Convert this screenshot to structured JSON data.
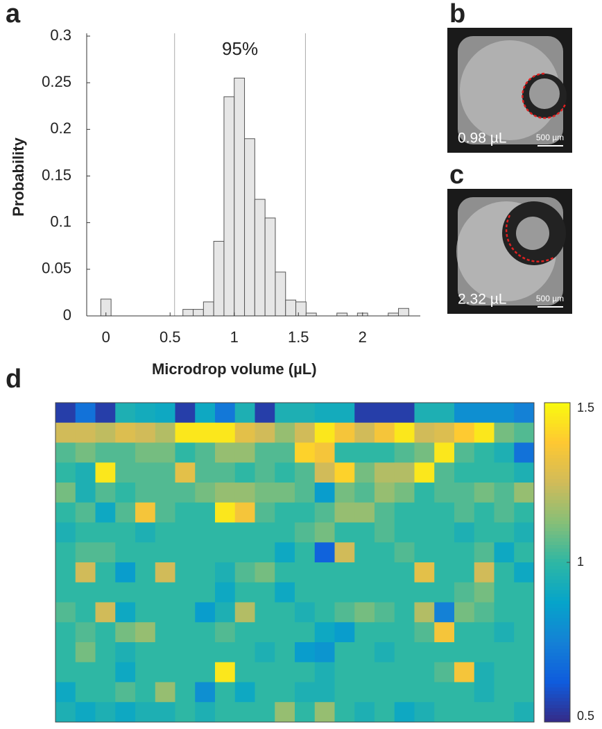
{
  "panel_labels": [
    "a",
    "b",
    "c",
    "d"
  ],
  "insets": [
    {
      "volume": "0.98 µL",
      "scale_bar": "500 µm"
    },
    {
      "volume": "2.32 µL",
      "scale_bar": "500 µm"
    }
  ],
  "chart_data": [
    {
      "type": "histogram",
      "xlabel": "Microdrop volume (µL)",
      "ylabel": "Probability",
      "bins": [
        -0.04,
        0.04,
        0.12,
        0.2,
        0.28,
        0.36,
        0.44,
        0.52,
        0.6,
        0.68,
        0.76,
        0.84,
        0.92,
        1.0,
        1.08,
        1.16,
        1.24,
        1.32,
        1.4,
        1.48,
        1.56,
        1.64,
        1.72,
        1.8,
        1.88,
        1.96,
        2.04,
        2.12,
        2.2,
        2.28,
        2.36
      ],
      "values": [
        0.018,
        0,
        0,
        0,
        0,
        0,
        0,
        0,
        0.007,
        0.007,
        0.015,
        0.08,
        0.235,
        0.255,
        0.19,
        0.125,
        0.105,
        0.047,
        0.017,
        0.015,
        0.003,
        0,
        0,
        0.003,
        0,
        0.003,
        0,
        0,
        0.003,
        0.008
      ],
      "color": "#e6e6e6",
      "edgecolor": "#555555",
      "xlim": [
        -0.15,
        2.45
      ],
      "xticks": [
        0,
        0.5,
        1,
        1.5,
        2
      ],
      "ylim": [
        0,
        0.3
      ],
      "yticks": [
        0,
        0.05,
        0.1,
        0.15,
        0.2,
        0.25,
        0.3
      ],
      "vlines": [
        0.535,
        1.555
      ],
      "annotation": "95%",
      "grid": false
    },
    {
      "type": "heatmap",
      "colormap": "parula",
      "clim": [
        0.5,
        1.5
      ],
      "colorbar_ticks": [
        0.5,
        1,
        1.5
      ],
      "values": [
        [
          0.55,
          0.7,
          0.55,
          0.95,
          0.92,
          0.9,
          0.55,
          0.9,
          0.72,
          0.95,
          0.55,
          0.95,
          0.95,
          0.92,
          0.92,
          0.55,
          0.55,
          0.55,
          0.95,
          0.95,
          0.8,
          0.8,
          0.8,
          0.75
        ],
        [
          1.25,
          1.25,
          1.22,
          1.28,
          1.25,
          1.2,
          1.45,
          1.45,
          1.45,
          1.3,
          1.25,
          1.15,
          1.25,
          1.45,
          1.35,
          1.25,
          1.35,
          1.45,
          1.25,
          1.28,
          1.38,
          1.45,
          1.1,
          1.05
        ],
        [
          1.05,
          1.1,
          1.05,
          1.05,
          1.1,
          1.1,
          1.0,
          1.05,
          1.15,
          1.15,
          1.05,
          1.05,
          1.4,
          1.35,
          1.0,
          1.0,
          1.0,
          1.05,
          1.1,
          1.45,
          1.05,
          1.0,
          0.95,
          0.7
        ],
        [
          1.0,
          0.95,
          1.45,
          1.05,
          1.05,
          1.05,
          1.3,
          1.05,
          1.05,
          1.0,
          1.05,
          1.0,
          1.05,
          1.25,
          1.4,
          1.1,
          1.2,
          1.2,
          1.45,
          1.05,
          1.0,
          1.0,
          1.0,
          0.95
        ],
        [
          1.1,
          0.95,
          1.05,
          1.0,
          1.05,
          1.05,
          1.05,
          1.1,
          1.15,
          1.15,
          1.1,
          1.1,
          1.05,
          0.85,
          1.1,
          1.05,
          1.15,
          1.1,
          1.0,
          1.05,
          1.05,
          1.1,
          1.05,
          1.15
        ],
        [
          1.0,
          1.05,
          0.9,
          1.05,
          1.35,
          1.05,
          1.0,
          1.0,
          1.45,
          1.35,
          1.05,
          1.0,
          1.0,
          1.05,
          1.15,
          1.15,
          1.05,
          1.0,
          1.0,
          1.0,
          1.05,
          1.0,
          1.05,
          1.0
        ],
        [
          0.95,
          1.0,
          1.0,
          1.0,
          0.95,
          1.0,
          1.0,
          1.0,
          1.0,
          1.0,
          1.0,
          1.0,
          1.05,
          1.1,
          1.0,
          1.0,
          1.05,
          1.0,
          1.0,
          1.0,
          0.95,
          1.0,
          1.0,
          0.95
        ],
        [
          1.0,
          1.05,
          1.05,
          1.0,
          1.0,
          1.0,
          1.0,
          1.0,
          1.0,
          1.0,
          1.0,
          0.9,
          1.0,
          0.65,
          1.25,
          1.0,
          1.0,
          1.05,
          1.0,
          1.0,
          1.0,
          1.05,
          0.9,
          1.0
        ],
        [
          1.0,
          1.25,
          1.0,
          0.85,
          1.0,
          1.25,
          1.0,
          1.0,
          0.95,
          1.05,
          1.1,
          1.0,
          1.0,
          1.0,
          1.0,
          1.0,
          1.0,
          1.0,
          1.3,
          1.0,
          1.0,
          1.25,
          1.0,
          0.9
        ],
        [
          1.0,
          1.0,
          1.0,
          1.0,
          1.0,
          1.0,
          1.0,
          1.0,
          0.9,
          1.0,
          1.0,
          0.9,
          1.0,
          1.0,
          1.0,
          1.0,
          1.0,
          1.0,
          1.0,
          1.0,
          1.05,
          1.1,
          1.0,
          1.0
        ],
        [
          1.05,
          1.0,
          1.25,
          0.9,
          1.0,
          1.0,
          1.0,
          0.85,
          0.95,
          1.2,
          1.0,
          1.0,
          0.95,
          1.0,
          1.05,
          1.1,
          1.05,
          1.0,
          1.2,
          0.75,
          1.1,
          1.05,
          1.0,
          1.0
        ],
        [
          1.0,
          1.05,
          1.0,
          1.1,
          1.15,
          1.0,
          1.0,
          1.0,
          1.05,
          1.0,
          1.0,
          1.0,
          1.0,
          0.9,
          0.85,
          1.0,
          1.0,
          1.0,
          1.05,
          1.35,
          1.0,
          1.0,
          0.95,
          1.0
        ],
        [
          1.0,
          1.1,
          1.0,
          0.95,
          1.0,
          1.0,
          1.0,
          1.0,
          1.0,
          1.0,
          0.95,
          1.0,
          0.85,
          0.82,
          1.0,
          1.0,
          0.95,
          1.0,
          1.0,
          1.0,
          1.0,
          1.0,
          1.0,
          1.0
        ],
        [
          1.0,
          1.0,
          1.0,
          0.9,
          1.0,
          1.0,
          1.0,
          1.0,
          1.45,
          1.0,
          1.0,
          1.0,
          1.0,
          0.95,
          1.0,
          1.0,
          1.0,
          1.0,
          1.0,
          1.05,
          1.35,
          0.95,
          1.0,
          1.0
        ],
        [
          0.9,
          1.0,
          1.0,
          1.05,
          1.0,
          1.15,
          1.0,
          0.8,
          1.0,
          0.9,
          1.0,
          1.0,
          0.95,
          0.95,
          1.0,
          1.0,
          1.0,
          1.0,
          1.0,
          1.0,
          1.0,
          0.95,
          1.0,
          1.0
        ],
        [
          0.95,
          0.9,
          0.95,
          0.9,
          0.95,
          0.95,
          1.0,
          0.95,
          1.0,
          1.0,
          1.0,
          1.15,
          1.0,
          1.15,
          1.0,
          0.95,
          1.0,
          0.9,
          0.95,
          1.0,
          1.0,
          1.0,
          1.0,
          0.95
        ]
      ]
    }
  ]
}
